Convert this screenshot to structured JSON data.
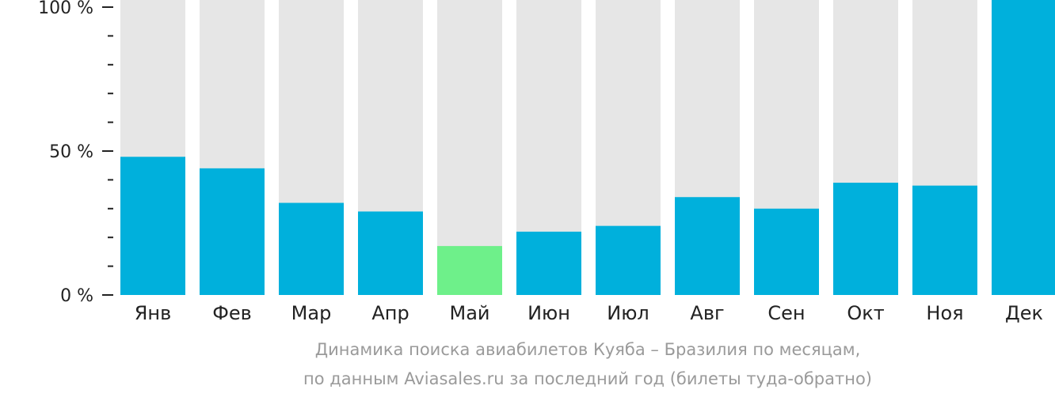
{
  "chart_data": {
    "type": "bar",
    "categories": [
      "Янв",
      "Фев",
      "Мар",
      "Апр",
      "Май",
      "Июн",
      "Июл",
      "Авг",
      "Сен",
      "Окт",
      "Ноя",
      "Дек"
    ],
    "values": [
      48,
      44,
      32,
      29,
      17,
      22,
      24,
      34,
      30,
      39,
      38,
      100
    ],
    "ylim": [
      0,
      100
    ],
    "y_ticks": [
      {
        "value": 100,
        "label": "100 %"
      },
      {
        "value": 50,
        "label": "50 %"
      },
      {
        "value": 0,
        "label": "0 %"
      }
    ],
    "minor_tick_step": 10,
    "colors": {
      "bar": "#00b0dc",
      "highlight": "#6ef08a",
      "track": "#e6e6e6",
      "axis": "#222222"
    },
    "highlight_category": "Май",
    "grid": false,
    "legend": "none"
  },
  "caption": {
    "line1": "Динамика поиска авиабилетов Куяба – Бразилия по месяцам,",
    "line2": "по данным Aviasales.ru за последний год (билеты туда-обратно)"
  }
}
